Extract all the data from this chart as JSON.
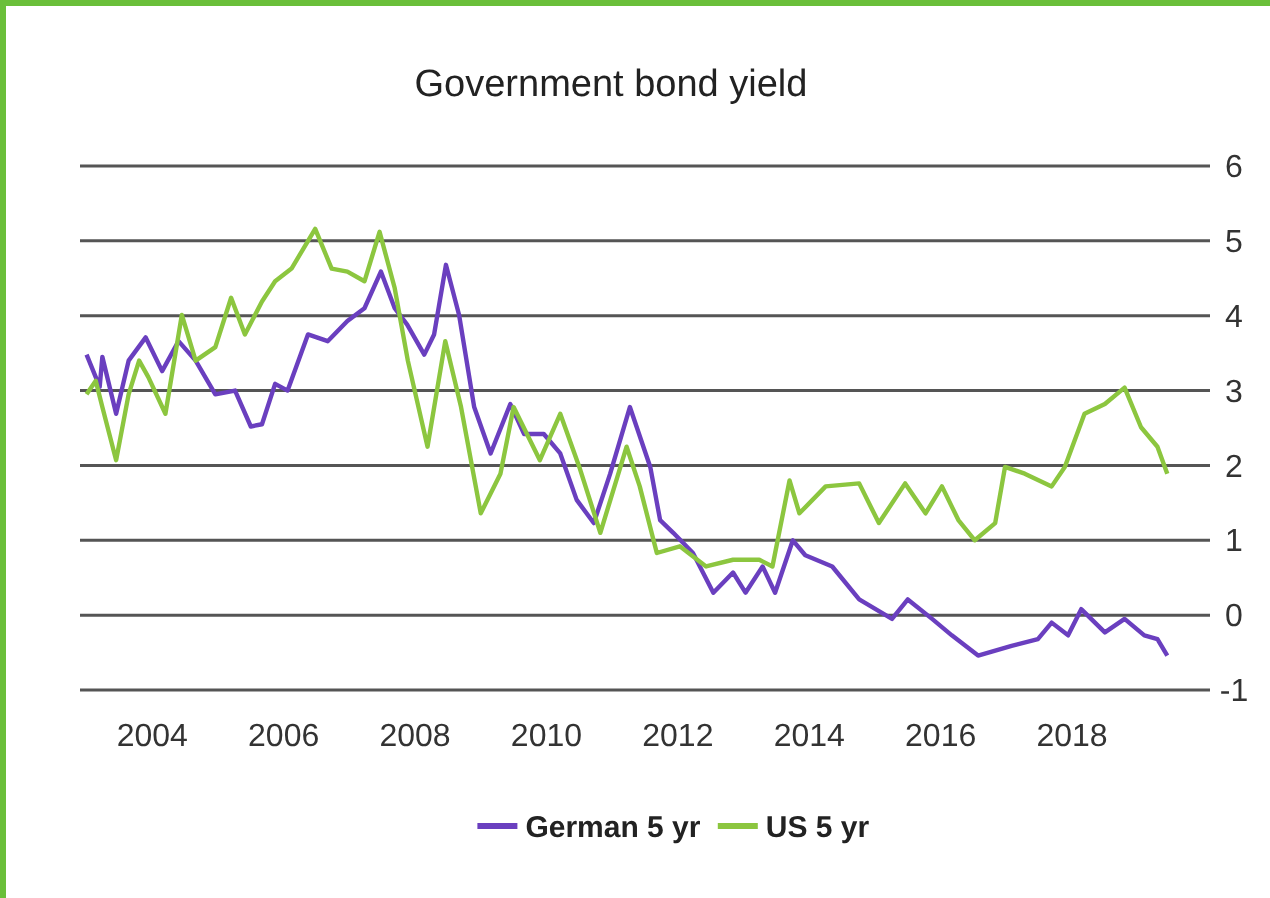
{
  "chart_data": {
    "type": "line",
    "title": "Government bond yield",
    "xlim": [
      2002.9,
      2020.1
    ],
    "xticks": [
      2004,
      2006,
      2008,
      2010,
      2012,
      2014,
      2016,
      2018
    ],
    "ylim": [
      -1,
      6
    ],
    "yticks": [
      -1,
      0,
      1,
      2,
      3,
      4,
      5,
      6
    ],
    "grid": "y",
    "legend": "bottom",
    "line_style": "solid",
    "marker": "none",
    "series": [
      {
        "name": "German 5 yr",
        "color": "#6a3fbf",
        "x": [
          2003.0,
          2003.2,
          2003.24,
          2003.45,
          2003.64,
          2003.9,
          2004.15,
          2004.4,
          2004.66,
          2004.96,
          2005.26,
          2005.5,
          2005.67,
          2005.87,
          2006.06,
          2006.37,
          2006.67,
          2006.97,
          2007.23,
          2007.48,
          2007.69,
          2007.88,
          2008.14,
          2008.29,
          2008.47,
          2008.67,
          2008.9,
          2009.15,
          2009.45,
          2009.66,
          2009.96,
          2010.21,
          2010.46,
          2010.72,
          2010.97,
          2011.27,
          2011.58,
          2011.73,
          2011.93,
          2012.23,
          2012.54,
          2012.84,
          2013.03,
          2013.29,
          2013.48,
          2013.75,
          2013.94,
          2014.35,
          2014.76,
          2015.26,
          2015.5,
          2015.87,
          2016.17,
          2016.57,
          2017.08,
          2017.48,
          2017.69,
          2017.94,
          2018.14,
          2018.5,
          2018.8,
          2019.1,
          2019.3,
          2019.45
        ],
        "values": [
          3.48,
          3.05,
          3.45,
          2.69,
          3.4,
          3.71,
          3.26,
          3.66,
          3.4,
          2.95,
          3.0,
          2.52,
          2.55,
          3.09,
          3.0,
          3.75,
          3.66,
          3.93,
          4.1,
          4.59,
          4.1,
          3.88,
          3.48,
          3.75,
          4.68,
          4.01,
          2.78,
          2.16,
          2.82,
          2.42,
          2.42,
          2.16,
          1.54,
          1.23,
          1.89,
          2.78,
          1.98,
          1.27,
          1.1,
          0.83,
          0.3,
          0.57,
          0.3,
          0.65,
          0.3,
          1.0,
          0.8,
          0.65,
          0.21,
          -0.05,
          0.21,
          -0.05,
          -0.27,
          -0.54,
          -0.41,
          -0.32,
          -0.1,
          -0.27,
          0.08,
          -0.23,
          -0.05,
          -0.27,
          -0.32,
          -0.54
        ]
      },
      {
        "name": "US 5 yr",
        "color": "#8cc63f",
        "x": [
          2003.0,
          2003.14,
          2003.24,
          2003.45,
          2003.64,
          2003.8,
          2003.94,
          2004.2,
          2004.45,
          2004.66,
          2004.96,
          2005.2,
          2005.41,
          2005.67,
          2005.87,
          2006.12,
          2006.48,
          2006.73,
          2006.97,
          2007.23,
          2007.46,
          2007.69,
          2007.89,
          2008.19,
          2008.46,
          2008.7,
          2009.0,
          2009.3,
          2009.5,
          2009.9,
          2010.21,
          2010.5,
          2010.82,
          2011.22,
          2011.42,
          2011.68,
          2012.03,
          2012.43,
          2012.84,
          2013.24,
          2013.44,
          2013.7,
          2013.85,
          2014.25,
          2014.76,
          2015.06,
          2015.46,
          2015.77,
          2016.02,
          2016.27,
          2016.52,
          2016.83,
          2016.98,
          2017.28,
          2017.69,
          2017.89,
          2018.19,
          2018.5,
          2018.8,
          2019.05,
          2019.3,
          2019.45
        ],
        "values": [
          2.95,
          3.13,
          2.78,
          2.07,
          2.95,
          3.4,
          3.18,
          2.69,
          4.01,
          3.4,
          3.58,
          4.24,
          3.75,
          4.19,
          4.46,
          4.63,
          5.16,
          4.63,
          4.59,
          4.46,
          5.12,
          4.37,
          3.4,
          2.25,
          3.66,
          2.78,
          1.36,
          1.89,
          2.78,
          2.07,
          2.69,
          1.98,
          1.1,
          2.25,
          1.72,
          0.83,
          0.92,
          0.65,
          0.74,
          0.74,
          0.65,
          1.8,
          1.36,
          1.72,
          1.76,
          1.23,
          1.76,
          1.36,
          1.72,
          1.27,
          1.0,
          1.23,
          1.98,
          1.89,
          1.72,
          1.98,
          2.69,
          2.82,
          3.04,
          2.51,
          2.25,
          1.89
        ]
      }
    ]
  }
}
